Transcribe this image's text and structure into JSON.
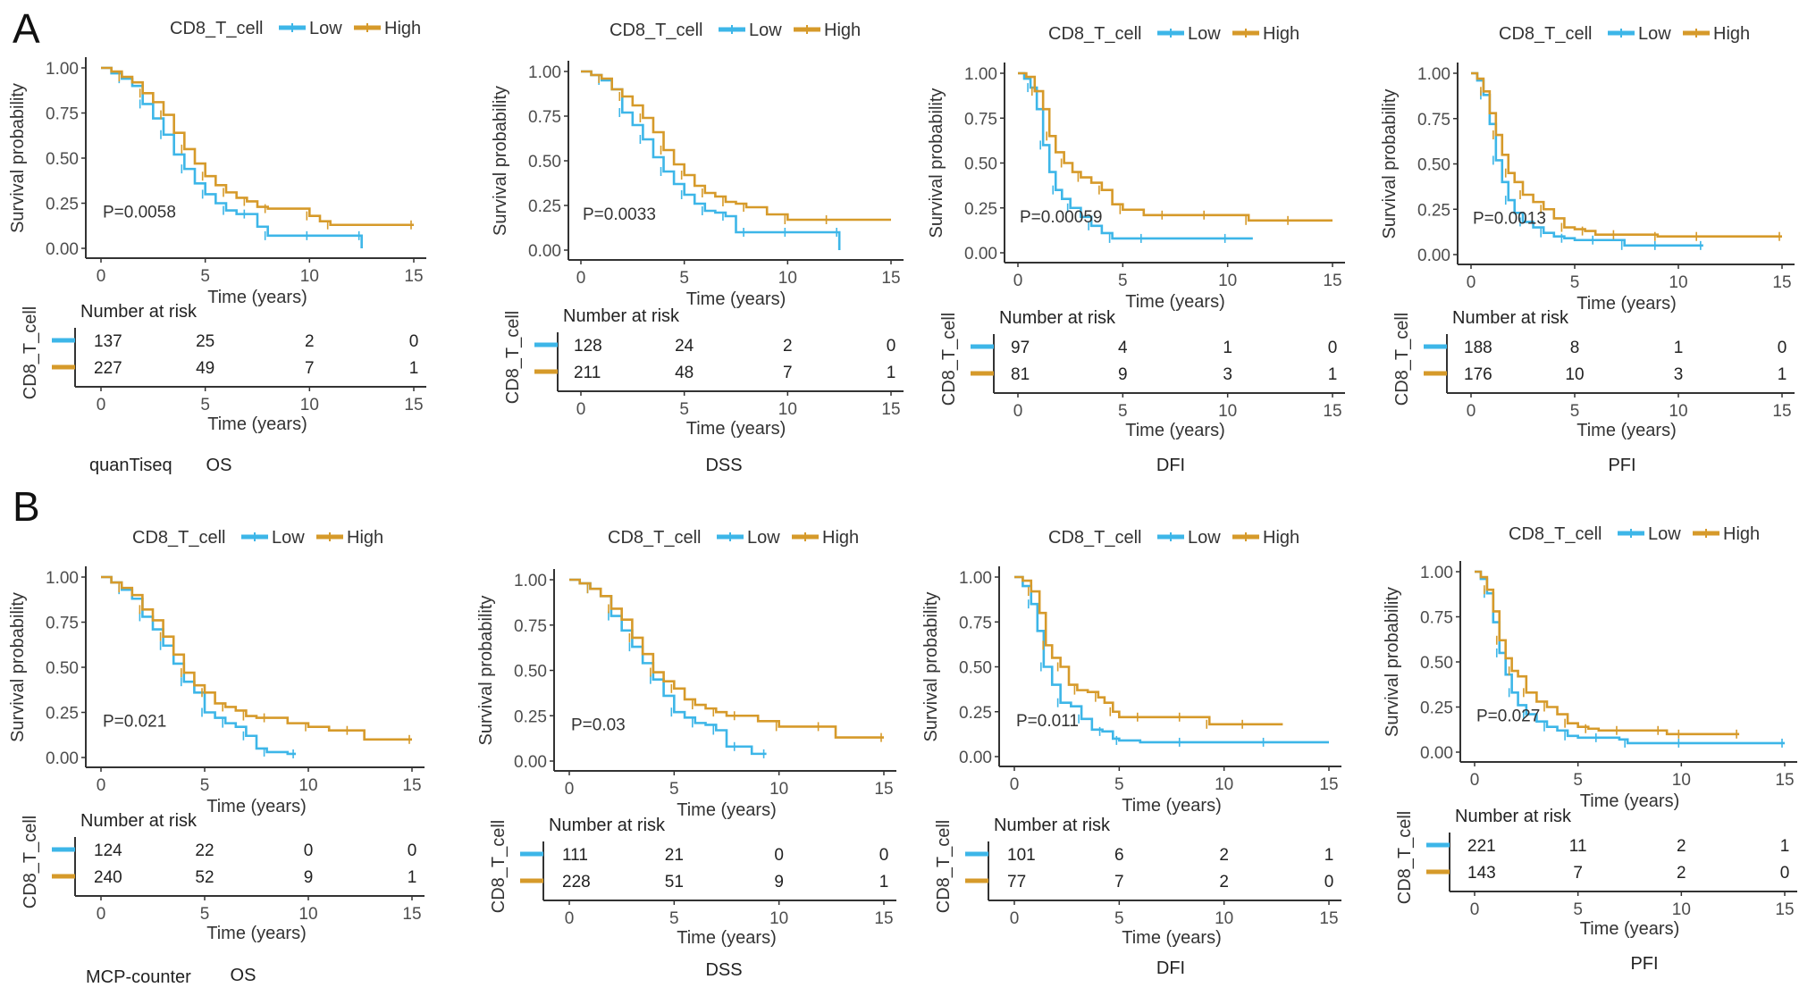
{
  "colors": {
    "low": "#3DB6E8",
    "high": "#D69A2A",
    "axis": "#333333"
  },
  "common": {
    "legend_title": "CD8_T_cell",
    "legend_low": "Low",
    "legend_high": "High",
    "ylabel": "Survival probability",
    "xlabel": "Time (years)",
    "risk_title": "Number at risk",
    "risk_ylabel": "CD8_T_cell",
    "x_ticks": [
      "0",
      "5",
      "10",
      "15"
    ],
    "y_ticks": [
      "0.00",
      "0.25",
      "0.50",
      "0.75",
      "1.00"
    ]
  },
  "panels": [
    {
      "letter": "A",
      "method": "quanTiseq"
    },
    {
      "letter": "B",
      "method": "MCP-counter"
    }
  ],
  "chart_data": [
    {
      "type": "line",
      "panel": "A",
      "method": "quanTiseq",
      "endpoint": "OS",
      "pvalue": "P=0.0058",
      "xlabel": "Time (years)",
      "ylabel": "Survival probability",
      "xlim": [
        0,
        15
      ],
      "ylim": [
        0,
        1
      ],
      "risk": {
        "times": [
          0,
          5,
          10,
          15
        ],
        "low": [
          137,
          25,
          2,
          0
        ],
        "high": [
          227,
          49,
          7,
          1
        ]
      },
      "series": [
        {
          "name": "Low",
          "x": [
            0,
            0.5,
            1,
            1.5,
            2,
            2.5,
            3,
            3.5,
            4,
            4.5,
            5,
            5.5,
            6,
            6.5,
            7,
            7.5,
            8,
            9,
            10,
            11,
            12.5,
            12.5
          ],
          "y": [
            1,
            0.97,
            0.94,
            0.9,
            0.8,
            0.72,
            0.63,
            0.52,
            0.44,
            0.36,
            0.3,
            0.25,
            0.21,
            0.19,
            0.19,
            0.12,
            0.07,
            0.07,
            0.07,
            0.07,
            0.07,
            0.0
          ]
        },
        {
          "name": "High",
          "x": [
            0,
            0.5,
            1,
            1.5,
            2,
            2.5,
            3,
            3.5,
            4,
            4.5,
            5,
            5.5,
            6,
            6.5,
            7,
            7.5,
            8,
            9,
            10,
            10.5,
            11,
            12,
            15
          ],
          "y": [
            1,
            0.98,
            0.95,
            0.92,
            0.86,
            0.81,
            0.74,
            0.64,
            0.55,
            0.47,
            0.4,
            0.35,
            0.31,
            0.28,
            0.26,
            0.23,
            0.22,
            0.22,
            0.18,
            0.15,
            0.13,
            0.13,
            0.13
          ]
        }
      ]
    },
    {
      "type": "line",
      "panel": "A",
      "method": "quanTiseq",
      "endpoint": "DSS",
      "pvalue": "P=0.0033",
      "xlabel": "Time (years)",
      "ylabel": "Survival probability",
      "xlim": [
        0,
        15
      ],
      "ylim": [
        0,
        1
      ],
      "risk": {
        "times": [
          0,
          5,
          10,
          15
        ],
        "low": [
          128,
          24,
          2,
          0
        ],
        "high": [
          211,
          48,
          7,
          1
        ]
      },
      "series": [
        {
          "name": "Low",
          "x": [
            0,
            0.5,
            1,
            1.5,
            2,
            2.5,
            3,
            3.5,
            4,
            4.5,
            5,
            5.5,
            6,
            6.5,
            7,
            7.5,
            8,
            9,
            10,
            11,
            12.5,
            12.5
          ],
          "y": [
            1,
            0.98,
            0.95,
            0.9,
            0.77,
            0.7,
            0.62,
            0.52,
            0.44,
            0.37,
            0.31,
            0.26,
            0.22,
            0.21,
            0.19,
            0.1,
            0.1,
            0.1,
            0.1,
            0.1,
            0.1,
            0.0
          ]
        },
        {
          "name": "High",
          "x": [
            0,
            0.5,
            1,
            1.5,
            2,
            2.5,
            3,
            3.5,
            4,
            4.5,
            5,
            5.5,
            6,
            6.5,
            7,
            7.5,
            8,
            9,
            10,
            11,
            12,
            15
          ],
          "y": [
            1,
            0.98,
            0.96,
            0.9,
            0.86,
            0.81,
            0.74,
            0.66,
            0.56,
            0.48,
            0.42,
            0.36,
            0.32,
            0.3,
            0.27,
            0.26,
            0.24,
            0.2,
            0.17,
            0.17,
            0.17,
            0.17
          ]
        }
      ]
    },
    {
      "type": "line",
      "panel": "A",
      "method": "quanTiseq",
      "endpoint": "DFI",
      "pvalue": "P=0.00059",
      "xlabel": "Time (years)",
      "ylabel": "Survival probability",
      "xlim": [
        0,
        15
      ],
      "ylim": [
        0,
        1
      ],
      "risk": {
        "times": [
          0,
          5,
          10,
          15
        ],
        "low": [
          97,
          4,
          1,
          0
        ],
        "high": [
          81,
          9,
          3,
          1
        ]
      },
      "series": [
        {
          "name": "Low",
          "x": [
            0,
            0.3,
            0.6,
            0.9,
            1.2,
            1.5,
            1.8,
            2.1,
            2.5,
            3,
            3.5,
            4,
            4.5,
            5,
            6,
            8,
            10,
            11.2
          ],
          "y": [
            1,
            0.97,
            0.92,
            0.8,
            0.6,
            0.45,
            0.35,
            0.3,
            0.25,
            0.2,
            0.15,
            0.11,
            0.08,
            0.08,
            0.08,
            0.08,
            0.08,
            0.08
          ]
        },
        {
          "name": "High",
          "x": [
            0,
            0.4,
            0.8,
            1.2,
            1.5,
            1.8,
            2.2,
            2.6,
            3,
            3.5,
            4,
            4.5,
            5,
            6,
            7,
            8,
            9,
            10,
            11,
            12,
            13,
            15
          ],
          "y": [
            1,
            0.98,
            0.9,
            0.8,
            0.65,
            0.56,
            0.5,
            0.45,
            0.42,
            0.39,
            0.35,
            0.27,
            0.24,
            0.21,
            0.21,
            0.21,
            0.21,
            0.21,
            0.18,
            0.18,
            0.18,
            0.18
          ]
        }
      ]
    },
    {
      "type": "line",
      "panel": "A",
      "method": "quanTiseq",
      "endpoint": "PFI",
      "pvalue": "P=0.0013",
      "xlabel": "Time (years)",
      "ylabel": "Survival probability",
      "xlim": [
        0,
        15
      ],
      "ylim": [
        0,
        1
      ],
      "risk": {
        "times": [
          0,
          5,
          10,
          15
        ],
        "low": [
          188,
          8,
          1,
          0
        ],
        "high": [
          176,
          10,
          3,
          1
        ]
      },
      "series": [
        {
          "name": "Low",
          "x": [
            0,
            0.3,
            0.6,
            0.9,
            1.2,
            1.5,
            1.8,
            2.1,
            2.5,
            3,
            3.5,
            4,
            4.5,
            5,
            6,
            7,
            7.4,
            8,
            9,
            10,
            11.2
          ],
          "y": [
            1,
            0.96,
            0.88,
            0.72,
            0.52,
            0.4,
            0.3,
            0.23,
            0.18,
            0.15,
            0.12,
            0.1,
            0.09,
            0.08,
            0.08,
            0.08,
            0.05,
            0.05,
            0.05,
            0.05,
            0.05
          ]
        },
        {
          "name": "High",
          "x": [
            0,
            0.3,
            0.6,
            0.9,
            1.2,
            1.5,
            1.8,
            2.1,
            2.5,
            3,
            3.5,
            4,
            4.5,
            5,
            5.5,
            6,
            7,
            8,
            9,
            9.5,
            11,
            13,
            15
          ],
          "y": [
            1,
            0.97,
            0.9,
            0.78,
            0.66,
            0.55,
            0.45,
            0.4,
            0.33,
            0.29,
            0.25,
            0.2,
            0.15,
            0.14,
            0.13,
            0.11,
            0.11,
            0.11,
            0.1,
            0.1,
            0.1,
            0.1,
            0.1
          ]
        }
      ]
    },
    {
      "type": "line",
      "panel": "B",
      "method": "MCP-counter",
      "endpoint": "OS",
      "pvalue": "P=0.021",
      "xlabel": "Time (years)",
      "ylabel": "Survival probability",
      "xlim": [
        0,
        15
      ],
      "ylim": [
        0,
        1
      ],
      "risk": {
        "times": [
          0,
          5,
          10,
          15
        ],
        "low": [
          124,
          22,
          0,
          0
        ],
        "high": [
          240,
          52,
          9,
          1
        ]
      },
      "series": [
        {
          "name": "Low",
          "x": [
            0,
            0.5,
            1,
            1.5,
            2,
            2.5,
            3,
            3.5,
            4,
            4.5,
            5,
            5.5,
            6,
            6.5,
            7,
            7.5,
            8,
            9,
            9.4
          ],
          "y": [
            1,
            0.97,
            0.93,
            0.88,
            0.78,
            0.71,
            0.62,
            0.52,
            0.42,
            0.36,
            0.25,
            0.22,
            0.19,
            0.17,
            0.12,
            0.05,
            0.03,
            0.02,
            0.02
          ]
        },
        {
          "name": "High",
          "x": [
            0,
            0.5,
            1,
            1.5,
            2,
            2.5,
            3,
            3.5,
            4,
            4.5,
            5,
            5.5,
            6,
            6.5,
            7,
            7.5,
            8,
            9,
            10,
            11,
            12,
            12.7,
            15
          ],
          "y": [
            1,
            0.97,
            0.94,
            0.9,
            0.82,
            0.76,
            0.67,
            0.57,
            0.47,
            0.4,
            0.36,
            0.3,
            0.28,
            0.26,
            0.23,
            0.22,
            0.22,
            0.19,
            0.17,
            0.15,
            0.15,
            0.1,
            0.1
          ]
        }
      ]
    },
    {
      "type": "line",
      "panel": "B",
      "method": "MCP-counter",
      "endpoint": "DSS",
      "pvalue": "P=0.03",
      "xlabel": "Time (years)",
      "ylabel": "Survival probability",
      "xlim": [
        0,
        15
      ],
      "ylim": [
        0,
        1
      ],
      "risk": {
        "times": [
          0,
          5,
          10,
          15
        ],
        "low": [
          111,
          21,
          0,
          0
        ],
        "high": [
          228,
          51,
          9,
          1
        ]
      },
      "series": [
        {
          "name": "Low",
          "x": [
            0,
            0.5,
            1,
            1.5,
            2,
            2.5,
            3,
            3.5,
            4,
            4.5,
            5,
            5.5,
            6,
            6.5,
            7,
            7.5,
            8,
            8.7,
            9.4
          ],
          "y": [
            1,
            0.98,
            0.95,
            0.91,
            0.8,
            0.72,
            0.63,
            0.54,
            0.45,
            0.36,
            0.27,
            0.24,
            0.21,
            0.2,
            0.17,
            0.08,
            0.08,
            0.04,
            0.04
          ]
        },
        {
          "name": "High",
          "x": [
            0,
            0.5,
            1,
            1.5,
            2,
            2.5,
            3,
            3.5,
            4,
            4.5,
            5,
            5.5,
            6,
            6.5,
            7,
            7.5,
            8,
            9,
            10,
            11,
            12,
            12.7,
            15
          ],
          "y": [
            1,
            0.98,
            0.95,
            0.91,
            0.84,
            0.78,
            0.68,
            0.59,
            0.49,
            0.44,
            0.4,
            0.34,
            0.31,
            0.29,
            0.27,
            0.25,
            0.25,
            0.22,
            0.19,
            0.19,
            0.19,
            0.13,
            0.13
          ]
        }
      ]
    },
    {
      "type": "line",
      "panel": "B",
      "method": "MCP-counter",
      "endpoint": "DFI",
      "pvalue": "P=0.011",
      "xlabel": "Time (years)",
      "ylabel": "Survival probability",
      "xlim": [
        0,
        15
      ],
      "ylim": [
        0,
        1
      ],
      "risk": {
        "times": [
          0,
          5,
          10,
          15
        ],
        "low": [
          101,
          6,
          2,
          1
        ],
        "high": [
          77,
          7,
          2,
          0
        ]
      },
      "series": [
        {
          "name": "Low",
          "x": [
            0,
            0.4,
            0.8,
            1.1,
            1.4,
            1.8,
            2.2,
            2.7,
            3.2,
            3.7,
            4.2,
            4.7,
            5,
            6,
            8,
            10,
            12,
            15
          ],
          "y": [
            1,
            0.95,
            0.85,
            0.7,
            0.5,
            0.4,
            0.3,
            0.28,
            0.21,
            0.15,
            0.14,
            0.1,
            0.09,
            0.08,
            0.08,
            0.08,
            0.08,
            0.08
          ]
        },
        {
          "name": "High",
          "x": [
            0,
            0.4,
            0.8,
            1.2,
            1.5,
            1.8,
            2.2,
            2.6,
            3,
            3.5,
            4,
            4.3,
            4.7,
            5,
            6,
            7,
            8,
            9,
            9.3,
            10,
            11,
            12.8
          ],
          "y": [
            1,
            0.98,
            0.92,
            0.8,
            0.62,
            0.55,
            0.5,
            0.4,
            0.37,
            0.36,
            0.33,
            0.3,
            0.25,
            0.22,
            0.22,
            0.22,
            0.22,
            0.22,
            0.18,
            0.18,
            0.18,
            0.18
          ]
        }
      ]
    },
    {
      "type": "line",
      "panel": "B",
      "method": "MCP-counter",
      "endpoint": "PFI",
      "pvalue": "P=0.027",
      "xlabel": "Time (years)",
      "ylabel": "Survival probability",
      "xlim": [
        0,
        15
      ],
      "ylim": [
        0,
        1
      ],
      "risk": {
        "times": [
          0,
          5,
          10,
          15
        ],
        "low": [
          221,
          11,
          2,
          1
        ],
        "high": [
          143,
          7,
          2,
          0
        ]
      },
      "series": [
        {
          "name": "Low",
          "x": [
            0,
            0.3,
            0.6,
            0.9,
            1.2,
            1.5,
            1.8,
            2.1,
            2.5,
            3,
            3.5,
            4,
            4.5,
            5,
            6,
            7,
            7.4,
            8,
            10,
            12,
            15
          ],
          "y": [
            1,
            0.96,
            0.88,
            0.72,
            0.55,
            0.43,
            0.33,
            0.26,
            0.21,
            0.17,
            0.14,
            0.12,
            0.09,
            0.08,
            0.08,
            0.07,
            0.05,
            0.05,
            0.05,
            0.05,
            0.05
          ]
        },
        {
          "name": "High",
          "x": [
            0,
            0.3,
            0.6,
            0.9,
            1.2,
            1.5,
            1.8,
            2.1,
            2.5,
            3,
            3.5,
            4,
            4.5,
            5,
            5.5,
            6,
            7,
            8,
            9,
            9.3,
            10,
            11,
            12.8
          ],
          "y": [
            1,
            0.97,
            0.9,
            0.78,
            0.62,
            0.52,
            0.45,
            0.42,
            0.33,
            0.28,
            0.25,
            0.21,
            0.16,
            0.14,
            0.13,
            0.12,
            0.12,
            0.12,
            0.12,
            0.1,
            0.1,
            0.1,
            0.1
          ]
        }
      ]
    }
  ]
}
